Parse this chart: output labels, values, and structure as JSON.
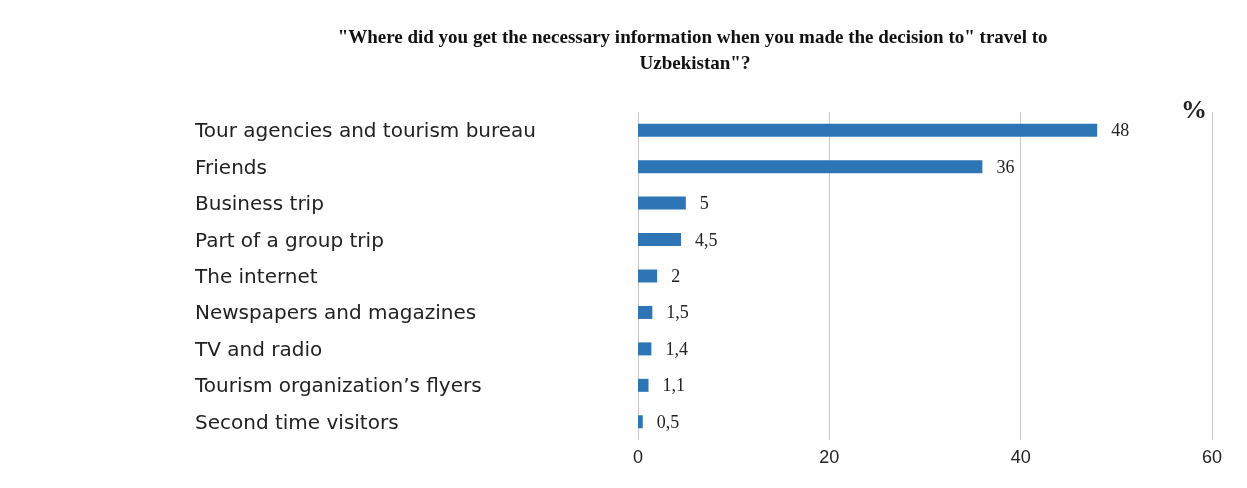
{
  "chart_data": {
    "type": "bar",
    "orientation": "horizontal",
    "title": "\"Where did you get the necessary information when you made the decision to\" travel to Uzbekistan\"?",
    "xlabel": "%",
    "categories": [
      "Tour agencies and tourism bureau",
      "Friends",
      "Business trip",
      "Part of a group trip",
      "The internet",
      "Newspapers and magazines",
      "TV and radio",
      "Tourism organization’s flyers",
      "Second time visitors"
    ],
    "values": [
      48,
      36,
      5,
      4.5,
      2,
      1.5,
      1.4,
      1.1,
      0.5
    ],
    "value_labels": [
      "48",
      "36",
      "5",
      "4,5",
      "2",
      "1,5",
      "1,4",
      "1,1",
      "0,5"
    ],
    "color": "#2e75b6",
    "xlim": [
      0,
      60
    ],
    "xticks": [
      0,
      20,
      40,
      60
    ],
    "grid": "x"
  }
}
